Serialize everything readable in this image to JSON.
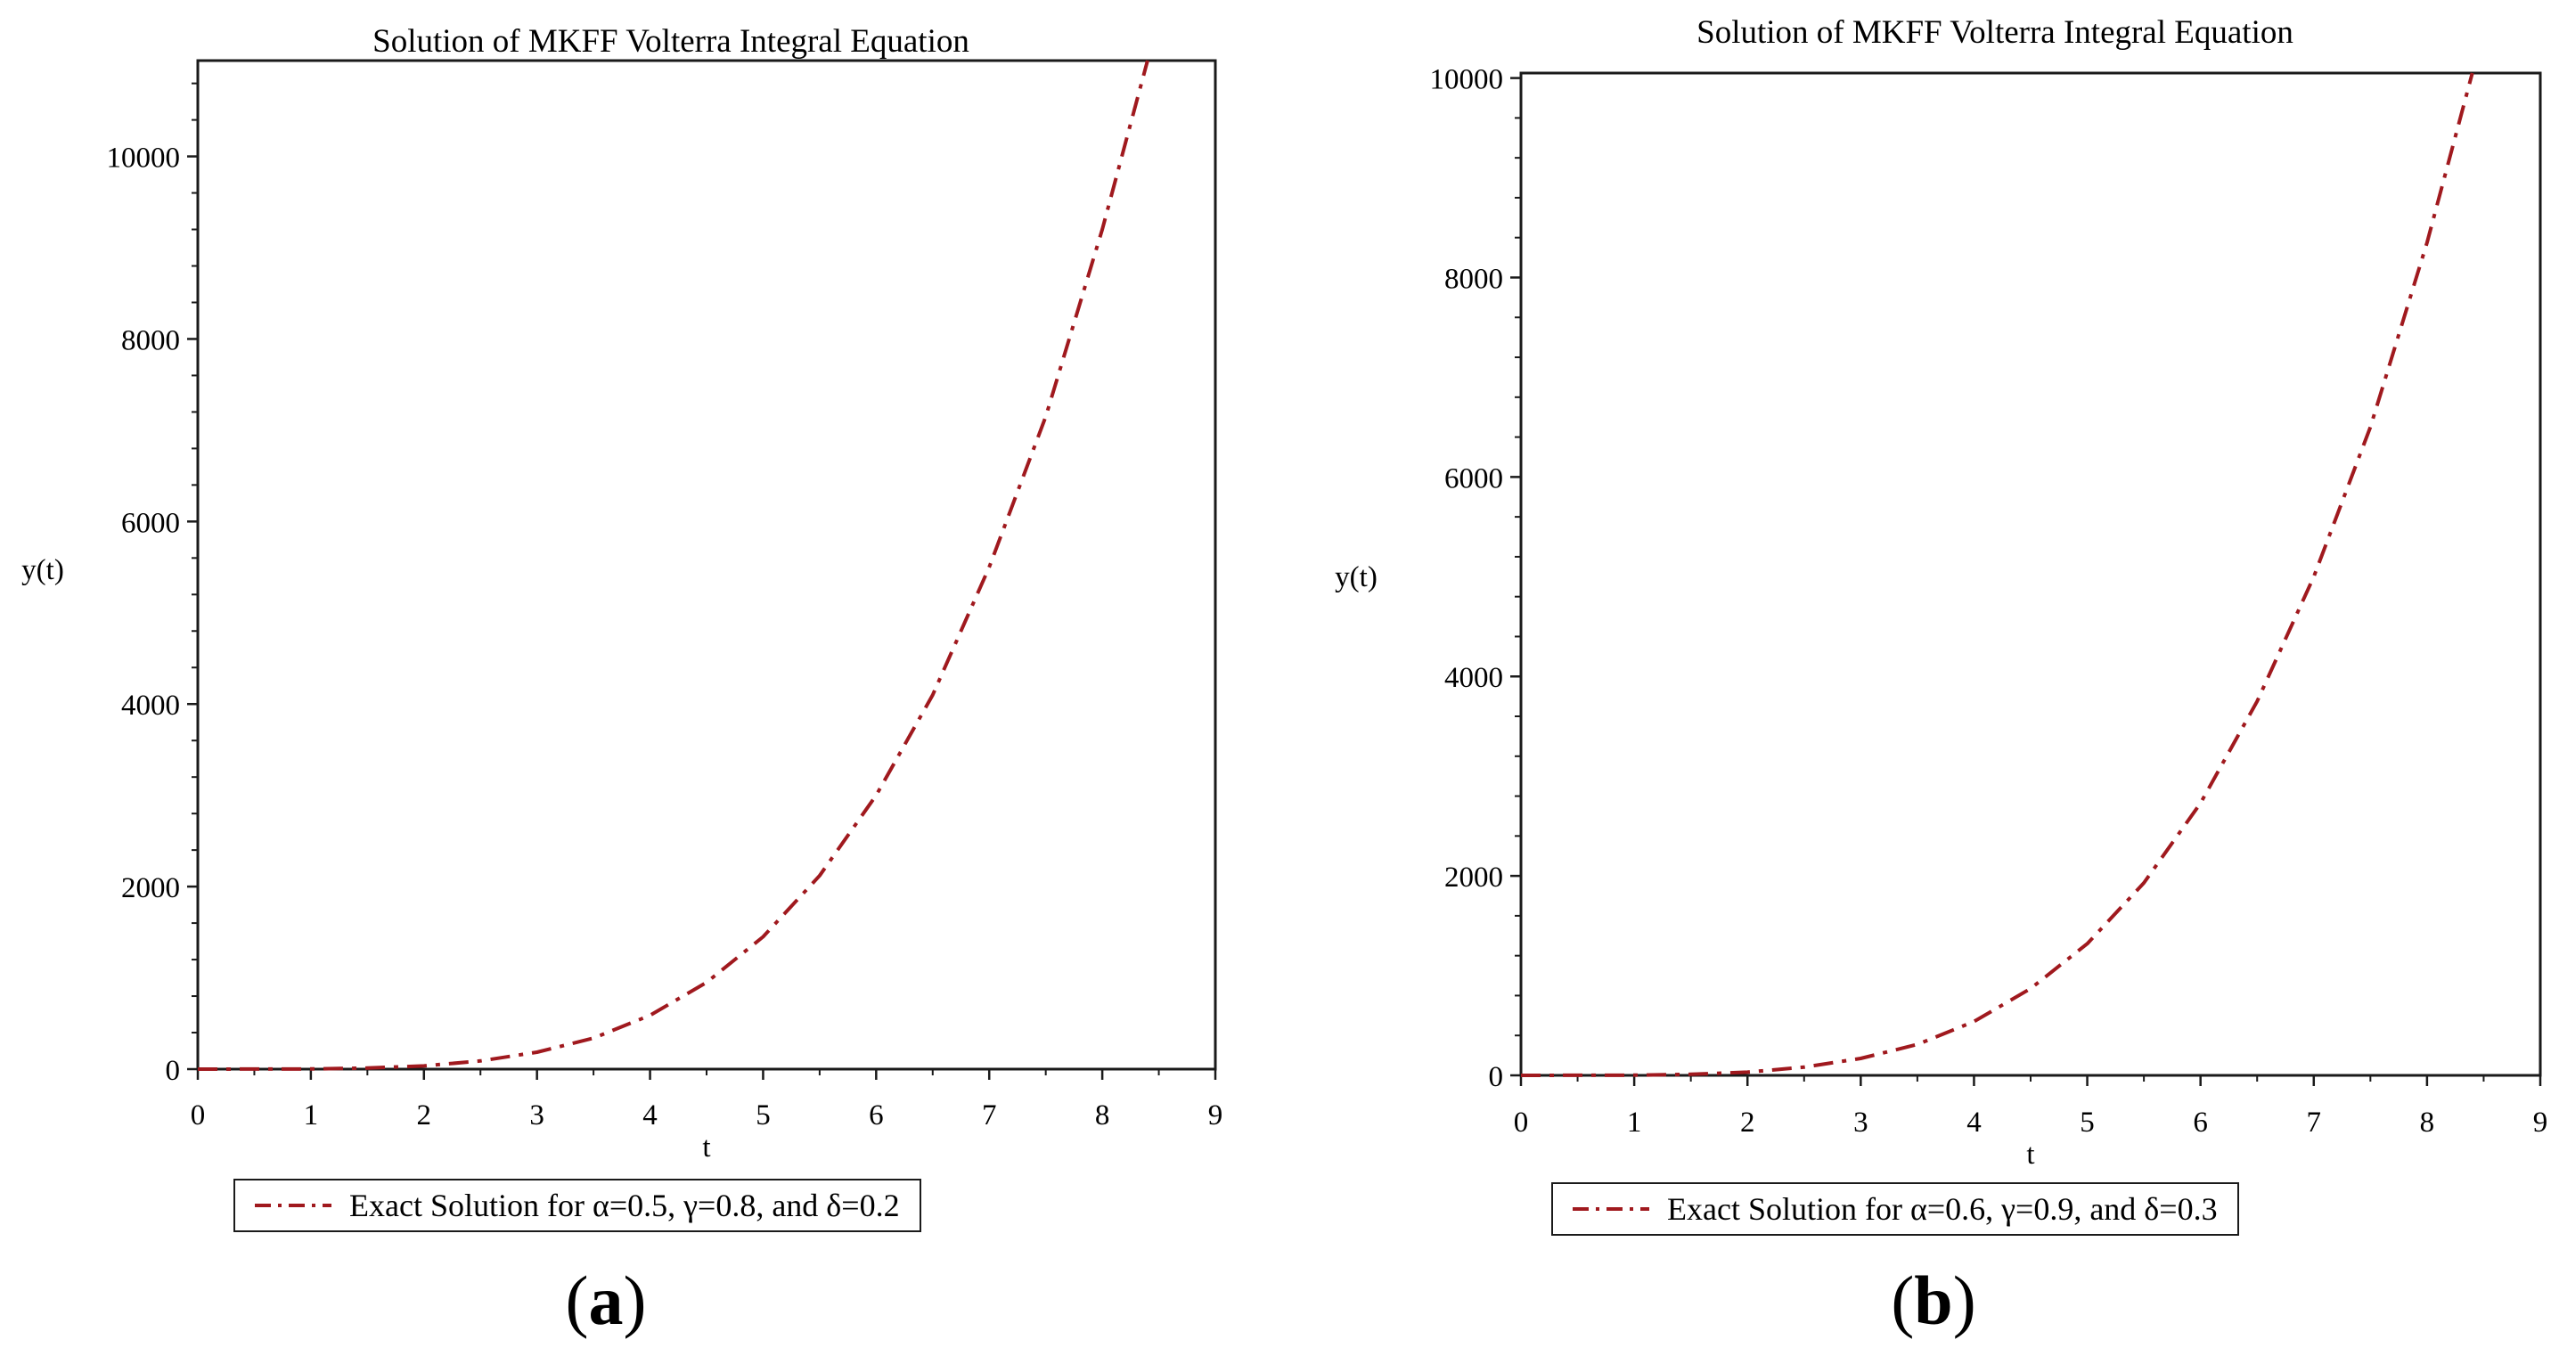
{
  "colors": {
    "curve": "#a0191e",
    "axis": "#1a1a1a"
  },
  "chart_data": [
    {
      "type": "line",
      "panel_label": "a",
      "title": "Solution of MKFF Volterra Integral Equation",
      "xlabel": "t",
      "ylabel": "y(t)",
      "xlim": [
        0,
        9
      ],
      "ylim": [
        0,
        11050
      ],
      "xticks": [
        0,
        1,
        2,
        3,
        4,
        5,
        6,
        7,
        8,
        9
      ],
      "yticks": [
        0,
        2000,
        4000,
        6000,
        8000,
        10000
      ],
      "grid": false,
      "line_style": "dash-dot",
      "series": [
        {
          "name": "Exact Solution for α=0.5, γ=0.8, and δ=0.2",
          "x": [
            0,
            0.5,
            1,
            1.5,
            2,
            2.5,
            3,
            3.5,
            4,
            4.5,
            5,
            5.5,
            6,
            6.5,
            7,
            7.5,
            8,
            8.4
          ],
          "y": [
            0,
            1,
            2,
            12,
            35,
            90,
            185,
            340,
            590,
            950,
            1450,
            2120,
            3000,
            4100,
            5500,
            7150,
            9200,
            11050
          ]
        }
      ]
    },
    {
      "type": "line",
      "panel_label": "b",
      "title": "Solution of MKFF Volterra Integral Equation",
      "xlabel": "t",
      "ylabel": "y(t)",
      "xlim": [
        0,
        9
      ],
      "ylim": [
        0,
        10050
      ],
      "xticks": [
        0,
        1,
        2,
        3,
        4,
        5,
        6,
        7,
        8,
        9
      ],
      "yticks": [
        0,
        2000,
        4000,
        6000,
        8000,
        10000
      ],
      "grid": false,
      "line_style": "dash-dot",
      "series": [
        {
          "name": "Exact Solution for α=0.6, γ=0.9, and δ=0.3",
          "x": [
            0,
            0.5,
            1,
            1.5,
            2,
            2.5,
            3,
            3.5,
            4,
            4.5,
            5,
            5.5,
            6,
            6.5,
            7,
            7.5,
            8,
            8.4
          ],
          "y": [
            0,
            1,
            2,
            11,
            32,
            82,
            170,
            310,
            540,
            870,
            1320,
            1930,
            2730,
            3750,
            5000,
            6500,
            8350,
            10050
          ]
        }
      ]
    }
  ]
}
